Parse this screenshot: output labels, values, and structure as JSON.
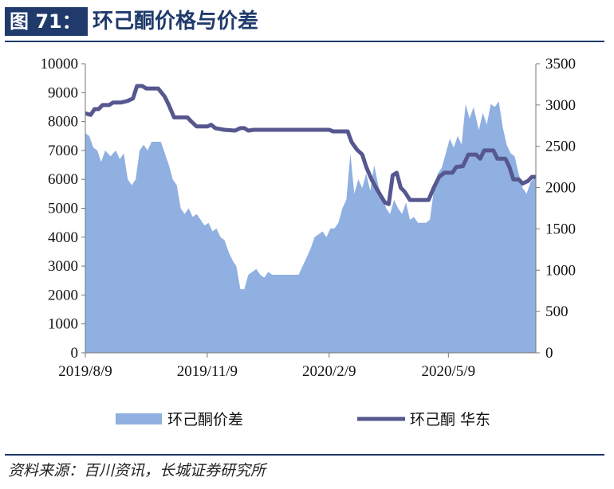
{
  "figure": {
    "tag": "图 71：",
    "title": "环己酮价格与价差",
    "source": "资料来源：百川资讯，长城证券研究所"
  },
  "chart_data": {
    "type": "area+line",
    "title": "环己酮价格与价差",
    "x_ticks": [
      "2019/8/9",
      "2019/11/9",
      "2020/2/9",
      "2020/5/9"
    ],
    "y_left": {
      "min": 0,
      "max": 10000,
      "ticks": [
        0,
        1000,
        2000,
        3000,
        4000,
        5000,
        6000,
        7000,
        8000,
        9000,
        10000
      ]
    },
    "y_right": {
      "min": 0,
      "max": 3500,
      "ticks": [
        0,
        500,
        1000,
        1500,
        2000,
        2500,
        3000,
        3500
      ]
    },
    "x_range": [
      "2019-08-09",
      "2020-07-14"
    ],
    "grid": false,
    "legend_position": "bottom",
    "colors": {
      "area": "#8fb0e0",
      "line": "#57578f",
      "axis": "#777777"
    },
    "series": [
      {
        "name": "环己酮价差",
        "axis": "left",
        "kind": "area",
        "points": [
          [
            "2019-08-09",
            7600
          ],
          [
            "2019-08-12",
            7500
          ],
          [
            "2019-08-15",
            7100
          ],
          [
            "2019-08-18",
            7000
          ],
          [
            "2019-08-21",
            6600
          ],
          [
            "2019-08-24",
            7000
          ],
          [
            "2019-08-28",
            6800
          ],
          [
            "2019-09-01",
            7000
          ],
          [
            "2019-09-04",
            6700
          ],
          [
            "2019-09-07",
            6900
          ],
          [
            "2019-09-10",
            6000
          ],
          [
            "2019-09-13",
            5800
          ],
          [
            "2019-09-16",
            6000
          ],
          [
            "2019-09-19",
            7000
          ],
          [
            "2019-09-22",
            7200
          ],
          [
            "2019-09-25",
            7000
          ],
          [
            "2019-09-28",
            7300
          ],
          [
            "2019-10-02",
            7300
          ],
          [
            "2019-10-05",
            7300
          ],
          [
            "2019-10-08",
            6900
          ],
          [
            "2019-10-11",
            6500
          ],
          [
            "2019-10-14",
            6000
          ],
          [
            "2019-10-17",
            5800
          ],
          [
            "2019-10-20",
            5000
          ],
          [
            "2019-10-23",
            4800
          ],
          [
            "2019-10-26",
            5000
          ],
          [
            "2019-10-29",
            4700
          ],
          [
            "2019-11-01",
            4800
          ],
          [
            "2019-11-04",
            4600
          ],
          [
            "2019-11-07",
            4400
          ],
          [
            "2019-11-10",
            4500
          ],
          [
            "2019-11-13",
            4200
          ],
          [
            "2019-11-16",
            4300
          ],
          [
            "2019-11-19",
            4000
          ],
          [
            "2019-11-22",
            3900
          ],
          [
            "2019-11-25",
            3500
          ],
          [
            "2019-11-28",
            3200
          ],
          [
            "2019-12-01",
            3000
          ],
          [
            "2019-12-04",
            2200
          ],
          [
            "2019-12-07",
            2200
          ],
          [
            "2019-12-10",
            2700
          ],
          [
            "2019-12-13",
            2800
          ],
          [
            "2019-12-16",
            2900
          ],
          [
            "2019-12-19",
            2700
          ],
          [
            "2019-12-22",
            2600
          ],
          [
            "2019-12-25",
            2800
          ],
          [
            "2019-12-28",
            2700
          ],
          [
            "2020-01-01",
            2700
          ],
          [
            "2020-01-05",
            2700
          ],
          [
            "2020-01-09",
            2700
          ],
          [
            "2020-01-13",
            2700
          ],
          [
            "2020-01-17",
            2700
          ],
          [
            "2020-01-20",
            3000
          ],
          [
            "2020-01-23",
            3300
          ],
          [
            "2020-01-26",
            3600
          ],
          [
            "2020-01-29",
            4000
          ],
          [
            "2020-02-01",
            4100
          ],
          [
            "2020-02-04",
            4200
          ],
          [
            "2020-02-07",
            4000
          ],
          [
            "2020-02-10",
            4300
          ],
          [
            "2020-02-13",
            4300
          ],
          [
            "2020-02-16",
            4500
          ],
          [
            "2020-02-19",
            5000
          ],
          [
            "2020-02-22",
            5300
          ],
          [
            "2020-02-25",
            6900
          ],
          [
            "2020-02-28",
            5500
          ],
          [
            "2020-03-02",
            6000
          ],
          [
            "2020-03-05",
            5700
          ],
          [
            "2020-03-08",
            6200
          ],
          [
            "2020-03-11",
            5600
          ],
          [
            "2020-03-14",
            6500
          ],
          [
            "2020-03-17",
            5800
          ],
          [
            "2020-03-20",
            5400
          ],
          [
            "2020-03-23",
            5000
          ],
          [
            "2020-03-26",
            4800
          ],
          [
            "2020-03-29",
            5300
          ],
          [
            "2020-04-01",
            5000
          ],
          [
            "2020-04-04",
            4800
          ],
          [
            "2020-04-07",
            5200
          ],
          [
            "2020-04-10",
            4600
          ],
          [
            "2020-04-13",
            4700
          ],
          [
            "2020-04-16",
            4500
          ],
          [
            "2020-04-19",
            4500
          ],
          [
            "2020-04-22",
            4500
          ],
          [
            "2020-04-25",
            4600
          ],
          [
            "2020-04-28",
            5600
          ],
          [
            "2020-05-01",
            6200
          ],
          [
            "2020-05-04",
            6400
          ],
          [
            "2020-05-07",
            6900
          ],
          [
            "2020-05-10",
            7400
          ],
          [
            "2020-05-13",
            7100
          ],
          [
            "2020-05-16",
            7500
          ],
          [
            "2020-05-19",
            7200
          ],
          [
            "2020-05-22",
            8600
          ],
          [
            "2020-05-25",
            8100
          ],
          [
            "2020-05-28",
            8500
          ],
          [
            "2020-06-01",
            7700
          ],
          [
            "2020-06-04",
            8300
          ],
          [
            "2020-06-07",
            7900
          ],
          [
            "2020-06-10",
            8600
          ],
          [
            "2020-06-13",
            8500
          ],
          [
            "2020-06-16",
            8700
          ],
          [
            "2020-06-19",
            7800
          ],
          [
            "2020-06-22",
            7200
          ],
          [
            "2020-06-25",
            6900
          ],
          [
            "2020-06-28",
            6800
          ],
          [
            "2020-07-01",
            6200
          ],
          [
            "2020-07-04",
            5700
          ],
          [
            "2020-07-07",
            5500
          ],
          [
            "2020-07-10",
            5900
          ],
          [
            "2020-07-14",
            6100
          ]
        ]
      },
      {
        "name": "环己酮 华东",
        "axis": "right",
        "kind": "line",
        "points": [
          [
            "2019-08-09",
            2900
          ],
          [
            "2019-08-13",
            2880
          ],
          [
            "2019-08-16",
            2950
          ],
          [
            "2019-08-19",
            2950
          ],
          [
            "2019-08-22",
            3000
          ],
          [
            "2019-08-27",
            3000
          ],
          [
            "2019-08-30",
            3030
          ],
          [
            "2019-09-05",
            3030
          ],
          [
            "2019-09-10",
            3050
          ],
          [
            "2019-09-14",
            3080
          ],
          [
            "2019-09-17",
            3230
          ],
          [
            "2019-09-21",
            3230
          ],
          [
            "2019-09-24",
            3200
          ],
          [
            "2019-10-03",
            3200
          ],
          [
            "2019-10-08",
            3100
          ],
          [
            "2019-10-11",
            3000
          ],
          [
            "2019-10-15",
            2850
          ],
          [
            "2019-10-25",
            2850
          ],
          [
            "2019-10-28",
            2800
          ],
          [
            "2019-11-01",
            2740
          ],
          [
            "2019-11-09",
            2740
          ],
          [
            "2019-11-12",
            2760
          ],
          [
            "2019-11-15",
            2720
          ],
          [
            "2019-11-22",
            2700
          ],
          [
            "2019-11-30",
            2690
          ],
          [
            "2019-12-04",
            2720
          ],
          [
            "2019-12-07",
            2720
          ],
          [
            "2019-12-10",
            2690
          ],
          [
            "2019-12-14",
            2700
          ],
          [
            "2020-01-15",
            2700
          ],
          [
            "2020-02-09",
            2700
          ],
          [
            "2020-02-12",
            2680
          ],
          [
            "2020-02-23",
            2680
          ],
          [
            "2020-02-26",
            2550
          ],
          [
            "2020-03-01",
            2460
          ],
          [
            "2020-03-05",
            2400
          ],
          [
            "2020-03-08",
            2250
          ],
          [
            "2020-03-12",
            2100
          ],
          [
            "2020-03-16",
            1980
          ],
          [
            "2020-03-19",
            1900
          ],
          [
            "2020-03-22",
            1820
          ],
          [
            "2020-03-25",
            1800
          ],
          [
            "2020-03-28",
            2150
          ],
          [
            "2020-03-31",
            2180
          ],
          [
            "2020-04-03",
            2000
          ],
          [
            "2020-04-06",
            1950
          ],
          [
            "2020-04-10",
            1850
          ],
          [
            "2020-04-24",
            1850
          ],
          [
            "2020-04-28",
            2000
          ],
          [
            "2020-05-02",
            2130
          ],
          [
            "2020-05-06",
            2180
          ],
          [
            "2020-05-12",
            2180
          ],
          [
            "2020-05-15",
            2250
          ],
          [
            "2020-05-20",
            2260
          ],
          [
            "2020-05-24",
            2400
          ],
          [
            "2020-05-30",
            2400
          ],
          [
            "2020-06-02",
            2350
          ],
          [
            "2020-06-05",
            2450
          ],
          [
            "2020-06-12",
            2450
          ],
          [
            "2020-06-15",
            2350
          ],
          [
            "2020-06-21",
            2350
          ],
          [
            "2020-06-24",
            2250
          ],
          [
            "2020-06-27",
            2100
          ],
          [
            "2020-07-01",
            2100
          ],
          [
            "2020-07-04",
            2050
          ],
          [
            "2020-07-08",
            2080
          ],
          [
            "2020-07-11",
            2130
          ],
          [
            "2020-07-14",
            2130
          ]
        ]
      }
    ]
  }
}
